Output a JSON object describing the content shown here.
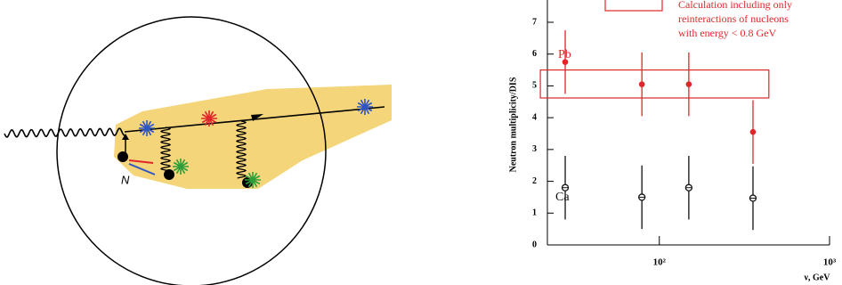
{
  "diagram": {
    "labels": [
      "N"
    ]
  },
  "chart_data": {
    "type": "scatter",
    "ylabel": "Neutron multiplicity/DIS",
    "xlabel": "ν, GeV",
    "log_x": true,
    "xlim": [
      22,
      1000
    ],
    "xticks": [
      {
        "value": 100,
        "label": "10²"
      },
      {
        "value": 1000,
        "label": "10³"
      }
    ],
    "ylim": [
      0,
      7.7
    ],
    "yticks": [
      0,
      1,
      2,
      3,
      4,
      5,
      6,
      7
    ],
    "series": [
      {
        "name": "Pb",
        "color": "#e0262b",
        "x": [
          28,
          79,
          149,
          355
        ],
        "values": [
          5.75,
          5.05,
          5.05,
          3.55
        ],
        "errors": [
          1,
          1,
          1,
          1
        ]
      },
      {
        "name": "Ca",
        "color": "#111111",
        "x": [
          28,
          79,
          149,
          355
        ],
        "values": [
          1.8,
          1.5,
          1.8,
          1.47
        ],
        "errors": [
          1,
          1,
          1,
          1
        ]
      }
    ],
    "band": {
      "x": [
        20,
        440
      ],
      "y": [
        4.62,
        5.5
      ],
      "color": "#e0262b"
    },
    "annotation": [
      "Calculation   including only",
      "reinteractions of  nucleons",
      "with energy < 0.8  GeV"
    ]
  }
}
